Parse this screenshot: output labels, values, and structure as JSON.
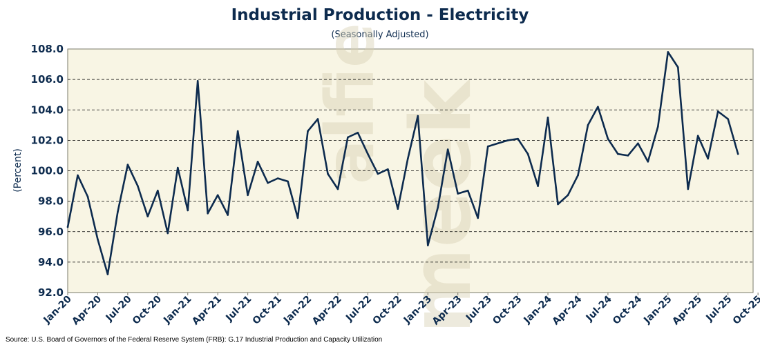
{
  "chart_data": {
    "type": "line",
    "title": "Industrial Production - Electricity",
    "subtitle": "(Seasonally Adjusted)",
    "ylabel": "(Percent)",
    "ylim": [
      92.0,
      108.0
    ],
    "yticks": [
      "92.0",
      "94.0",
      "96.0",
      "98.0",
      "100.0",
      "102.0",
      "104.0",
      "106.0",
      "108.0"
    ],
    "xtick_labels": [
      "Jan-20",
      "Apr-20",
      "Jul-20",
      "Oct-20",
      "Jan-21",
      "Apr-21",
      "Jul-21",
      "Oct-21",
      "Jan-22",
      "Apr-22",
      "Jul-22",
      "Oct-22",
      "Jan-23",
      "Apr-23",
      "Jul-23",
      "Oct-23",
      "Jan-24",
      "Apr-24",
      "Jul-24",
      "Oct-24",
      "Jan-25",
      "Apr-25",
      "Jul-25",
      "Oct-25"
    ],
    "grid": "horizontal-dashed",
    "series": [
      {
        "name": "Industrial Production - Electricity",
        "color": "#0d2b4e",
        "start": "Jan-20",
        "values": [
          96.3,
          99.7,
          98.3,
          95.5,
          93.2,
          97.3,
          100.4,
          99.0,
          97.0,
          98.7,
          95.9,
          100.2,
          97.4,
          105.9,
          97.2,
          98.4,
          97.1,
          102.6,
          98.4,
          100.6,
          99.2,
          99.5,
          99.3,
          96.9,
          102.6,
          103.4,
          99.8,
          98.8,
          102.2,
          102.5,
          101.1,
          99.8,
          100.1,
          97.5,
          100.8,
          103.6,
          95.1,
          97.6,
          101.4,
          98.5,
          98.7,
          96.9,
          101.6,
          101.8,
          102.0,
          102.1,
          101.1,
          99.0,
          103.5,
          97.8,
          98.4,
          99.7,
          103.0,
          104.2,
          102.1,
          101.1,
          101.0,
          101.8,
          100.6,
          102.9,
          107.8,
          106.8,
          98.8,
          102.3,
          100.8,
          103.9,
          103.4,
          101.1
        ]
      }
    ],
    "background": "#f8f5e4",
    "watermark": "alfie meek"
  },
  "source": "Source: U.S. Board of Governors of the Federal Reserve System (FRB): G.17 Industrial Production and Capacity Utilization"
}
